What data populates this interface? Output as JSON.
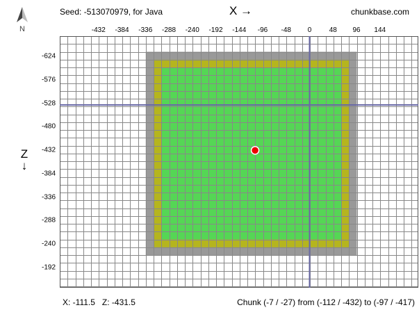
{
  "header": {
    "seed_text": "Seed: -513070979, for Java",
    "site": "chunkbase.com",
    "x_axis": "X →",
    "z_axis_letter": "Z",
    "z_axis_arrow": "↓",
    "compass_letter": "N"
  },
  "x_ticks": [
    "-432",
    "-384",
    "-336",
    "-288",
    "-240",
    "-192",
    "-144",
    "-96",
    "-48",
    "0",
    "48",
    "96",
    "144"
  ],
  "z_ticks": [
    "-624",
    "-576",
    "-528",
    "-480",
    "-432",
    "-384",
    "-336",
    "-288",
    "-240",
    "-192"
  ],
  "colors": {
    "grid_line": "#888888",
    "grid_bg": "#ffffff",
    "outer_ring": "#999999",
    "yellow_ring": "#b5b51e",
    "green_area": "#55d655",
    "axis_line": "#6a6aa6",
    "marker": "#ee0000"
  },
  "footer": {
    "coords": "X: -111.5   Z: -431.5",
    "chunk_info": "Chunk (-7 / -27) from (-112 / -432) to (-97 / -417)"
  }
}
